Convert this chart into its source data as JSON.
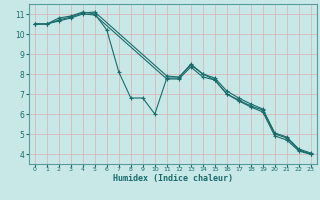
{
  "xlabel": "Humidex (Indice chaleur)",
  "bg_color": "#c8e8e8",
  "grid_color": "#e8e8e8",
  "line_color": "#1a6b6b",
  "spine_color": "#5a9a9a",
  "xlim": [
    -0.5,
    23.5
  ],
  "ylim": [
    3.5,
    11.5
  ],
  "yticks": [
    4,
    5,
    6,
    7,
    8,
    9,
    10,
    11
  ],
  "xticks": [
    0,
    1,
    2,
    3,
    4,
    5,
    6,
    7,
    8,
    9,
    10,
    11,
    12,
    13,
    14,
    15,
    16,
    17,
    18,
    19,
    20,
    21,
    22,
    23
  ],
  "line1": {
    "x": [
      0,
      1,
      2,
      3,
      4,
      5,
      6,
      7,
      8,
      9,
      10,
      11,
      12,
      13,
      14,
      15,
      16,
      17,
      18,
      19,
      20,
      21,
      22,
      23
    ],
    "y": [
      10.5,
      10.5,
      10.8,
      10.9,
      11.1,
      11.0,
      10.2,
      8.1,
      6.8,
      6.8,
      6.0,
      7.8,
      7.8,
      8.5,
      8.0,
      7.7,
      7.0,
      6.7,
      6.4,
      6.2,
      5.0,
      4.8,
      4.2,
      4.0
    ]
  },
  "line2": {
    "x": [
      0,
      1,
      2,
      3,
      4,
      5,
      11,
      12,
      13,
      14,
      15,
      16,
      17,
      18,
      19,
      20,
      21,
      22,
      23
    ],
    "y": [
      10.5,
      10.5,
      10.7,
      10.85,
      11.05,
      11.1,
      7.9,
      7.85,
      8.45,
      8.0,
      7.8,
      7.15,
      6.8,
      6.5,
      6.25,
      5.05,
      4.85,
      4.25,
      4.05
    ]
  },
  "line3": {
    "x": [
      0,
      1,
      2,
      3,
      4,
      5,
      11,
      12,
      13,
      14,
      15,
      16,
      17,
      18,
      19,
      20,
      21,
      22,
      23
    ],
    "y": [
      10.5,
      10.5,
      10.65,
      10.8,
      11.0,
      10.95,
      7.75,
      7.75,
      8.35,
      7.85,
      7.7,
      7.0,
      6.65,
      6.35,
      6.1,
      4.9,
      4.7,
      4.15,
      3.98
    ]
  }
}
